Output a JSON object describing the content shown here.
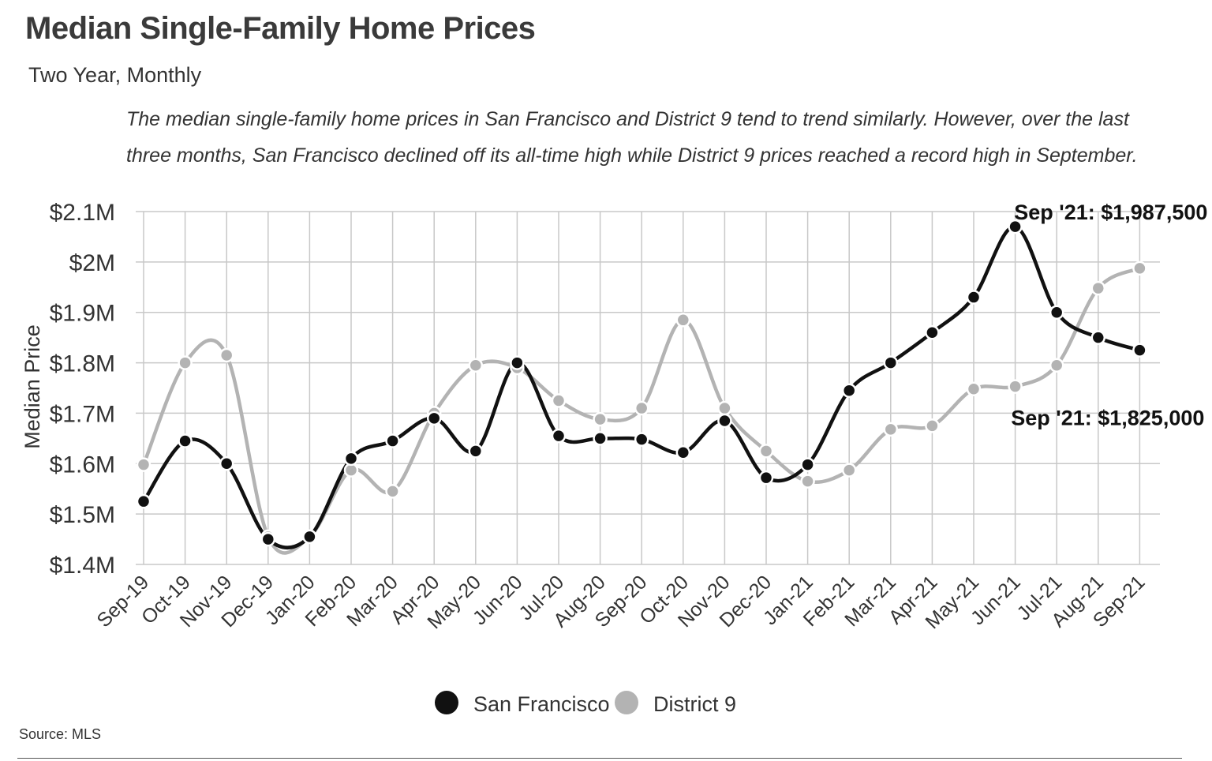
{
  "header": {
    "title": "Median Single-Family Home Prices",
    "subtitle": "Two Year, Monthly",
    "description_line1": "The median single-family home prices in San Francisco and District 9 tend to trend similarly. However, over the last",
    "description_line2": "three months, San Francisco declined off its all-time high while District 9 prices reached a record high in September."
  },
  "footer": {
    "source": "Source:  MLS"
  },
  "colors": {
    "san_francisco": "#111111",
    "district_9": "#b3b3b3",
    "grid": "#c8c8c8"
  },
  "chart_data": {
    "type": "line",
    "ylabel": "Median Price",
    "xlabel": "",
    "ylim": [
      1400000,
      2100000
    ],
    "y_ticks": [
      1400000,
      1500000,
      1600000,
      1700000,
      1800000,
      1900000,
      2000000,
      2100000
    ],
    "y_tick_labels": [
      "$1.4M",
      "$1.5M",
      "$1.6M",
      "$1.7M",
      "$1.8M",
      "$1.9M",
      "$2M",
      "$2.1M"
    ],
    "grid": true,
    "legend_position": "bottom-center",
    "categories": [
      "Sep-19",
      "Oct-19",
      "Nov-19",
      "Dec-19",
      "Jan-20",
      "Feb-20",
      "Mar-20",
      "Apr-20",
      "May-20",
      "Jun-20",
      "Jul-20",
      "Aug-20",
      "Sep-20",
      "Oct-20",
      "Nov-20",
      "Dec-20",
      "Jan-21",
      "Feb-21",
      "Mar-21",
      "Apr-21",
      "May-21",
      "Jun-21",
      "Jul-21",
      "Aug-21",
      "Sep-21"
    ],
    "series": [
      {
        "name": "San Francisco",
        "values": [
          1525000,
          1645000,
          1600000,
          1450000,
          1455000,
          1610000,
          1645000,
          1690000,
          1625000,
          1800000,
          1655000,
          1650000,
          1648000,
          1622000,
          1685000,
          1572000,
          1598000,
          1745000,
          1800000,
          1860000,
          1930000,
          2070000,
          1900000,
          1850000,
          1825000
        ]
      },
      {
        "name": "District 9",
        "values": [
          1598000,
          1800000,
          1815000,
          1455000,
          1455000,
          1587000,
          1545000,
          1700000,
          1795000,
          1790000,
          1725000,
          1688000,
          1710000,
          1885000,
          1710000,
          1625000,
          1565000,
          1587000,
          1668000,
          1675000,
          1748000,
          1753000,
          1795000,
          1948000,
          1987500
        ]
      }
    ],
    "annotations": [
      {
        "text": "Sep '21:  $1,987,500",
        "series": "District 9",
        "category": "Sep-21"
      },
      {
        "text": "Sep '21:  $1,825,000",
        "series": "San Francisco",
        "category": "Sep-21"
      }
    ]
  }
}
